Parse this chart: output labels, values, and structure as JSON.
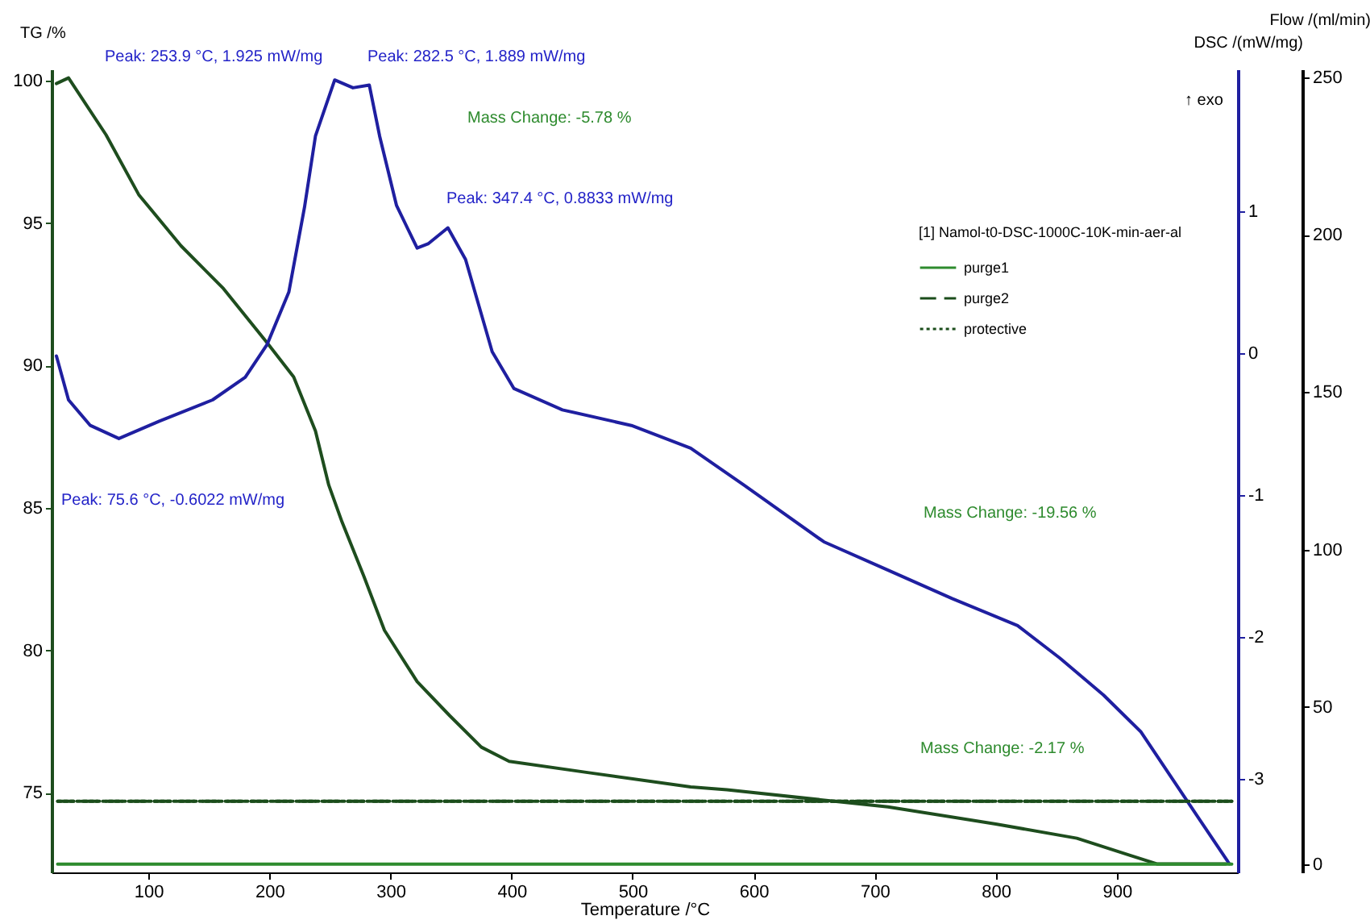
{
  "chart_data": {
    "type": "line",
    "xlabel": "Temperature /°C",
    "ylabel": "TG /%",
    "y2label": "DSC /(mW/mg)",
    "y3label": "Flow /(ml/min)",
    "legend_title": "[1] Namol-t0-DSC-1000C-10K-min-aer-al",
    "legend": "top right",
    "grid": false,
    "xlim": [
      20,
      1000
    ],
    "xticks": [
      100,
      200,
      300,
      400,
      500,
      600,
      700,
      800,
      900
    ],
    "ylim": [
      72.2,
      100.4
    ],
    "yticks": [
      75,
      80,
      85,
      90,
      95,
      100
    ],
    "y2lim": [
      -3.66,
      2.0
    ],
    "y2ticks": [
      -3,
      -2,
      -1,
      0,
      1
    ],
    "y3lim": [
      -2.6,
      252.6
    ],
    "y3ticks": [
      0,
      50,
      100,
      150,
      200,
      250
    ],
    "series": [
      {
        "color": "#1e4d1e",
        "x": [
          24,
          34,
          65,
          92,
          127,
          162,
          198,
          220,
          238,
          249,
          260,
          278,
          295,
          322,
          349,
          375,
          398,
          464,
          548,
          578,
          711,
          800,
          867,
          911,
          933,
          990
        ],
        "values": [
          99.9,
          100.1,
          98.1,
          96.0,
          94.2,
          92.7,
          90.8,
          89.6,
          87.7,
          85.8,
          84.5,
          82.6,
          80.7,
          78.9,
          77.7,
          76.6,
          76.1,
          75.7,
          75.2,
          75.1,
          74.5,
          73.9,
          73.4,
          72.8,
          72.5,
          72.5
        ]
      },
      {
        "axis": "y2",
        "color": "#1f1fa0",
        "x": [
          24,
          34,
          52,
          75.6,
          109,
          153,
          180,
          198,
          216,
          229,
          238,
          253.9,
          269,
          282.5,
          291,
          305,
          322,
          331,
          347.4,
          362,
          384,
          402,
          442,
          499,
          548,
          592,
          658,
          711,
          764,
          818,
          853,
          889,
          920,
          956,
          993
        ],
        "values": [
          -0.02,
          -0.33,
          -0.51,
          -0.6022,
          -0.48,
          -0.33,
          -0.17,
          0.06,
          0.43,
          1.03,
          1.53,
          1.925,
          1.87,
          1.889,
          1.53,
          1.04,
          0.74,
          0.77,
          0.8833,
          0.66,
          0.01,
          -0.25,
          -0.4,
          -0.51,
          -0.67,
          -0.93,
          -1.33,
          -1.53,
          -1.73,
          -1.92,
          -2.15,
          -2.41,
          -2.67,
          -3.13,
          -3.6
        ]
      },
      {
        "axis": "y3",
        "name": "purge1",
        "color": "#2e8b2e",
        "line_style": "solid",
        "x": [
          25,
          995
        ],
        "values": [
          0,
          0
        ]
      },
      {
        "axis": "y3",
        "name": "purge2",
        "color": "#1b4d1b",
        "line_style": "dashed",
        "x": [
          25,
          995
        ],
        "values": [
          20,
          20
        ]
      },
      {
        "axis": "y3",
        "name": "protective",
        "color": "#1b4d1b",
        "line_style": "dotted",
        "x": [
          25,
          995
        ],
        "values": [
          20,
          20
        ]
      }
    ],
    "annotations": [
      "Peak: 253.9 °C, 1.925 mW/mg",
      "Peak: 282.5 °C, 1.889 mW/mg",
      "Mass Change: -5.78 %",
      "Peak: 347.4 °C, 0.8833 mW/mg",
      "Peak: 75.6 °C, -0.6022 mW/mg",
      "Mass Change: -19.56 %",
      "Mass Change: -2.17 %",
      "↑ exo"
    ]
  }
}
